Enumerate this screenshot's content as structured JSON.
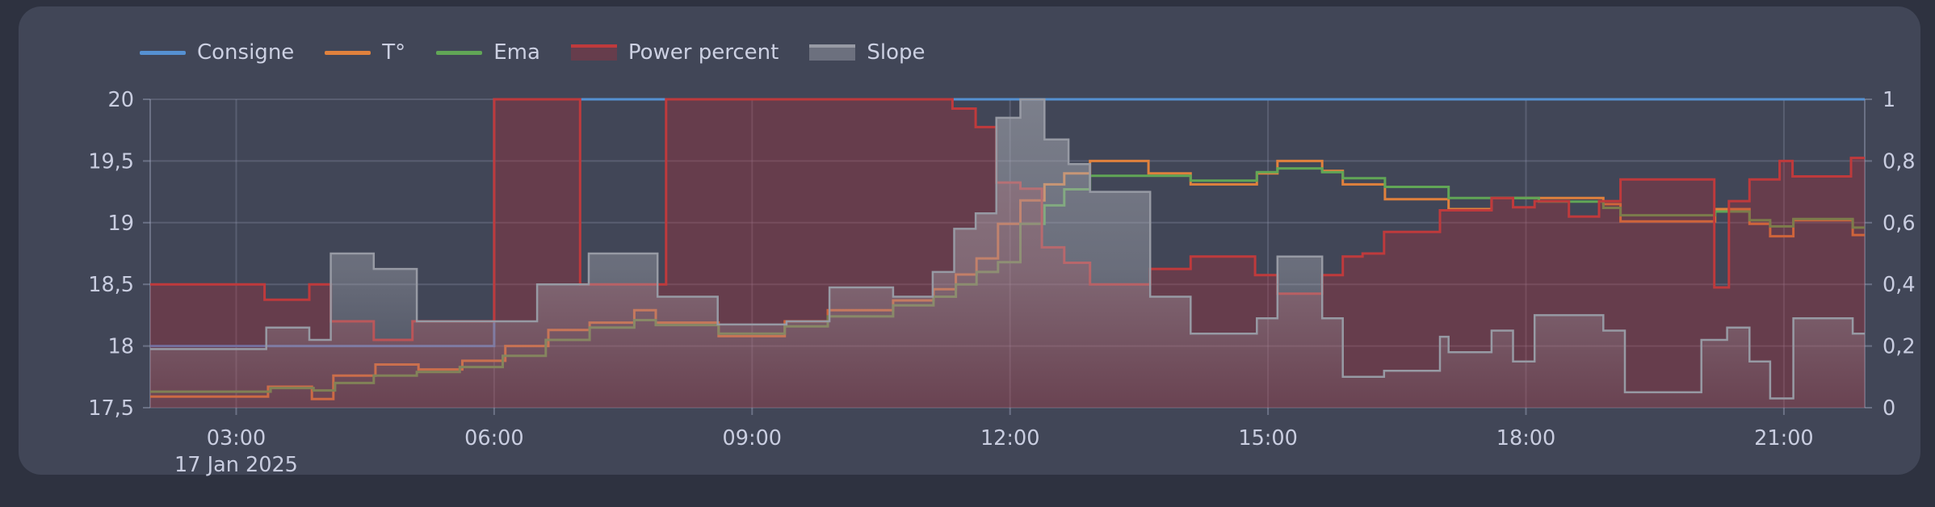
{
  "theme": {
    "page_bg": "#2e3240",
    "panel_bg": "#414657",
    "grid_color": "rgba(145,152,175,0.30)",
    "axis_line_color": "rgba(160,166,190,0.45)",
    "axis_label_color": "#c9cde0",
    "legend_text_color": "#ccd0e2"
  },
  "legend": {
    "items": [
      {
        "label": "Consigne",
        "swatch": "line"
      },
      {
        "label": "T°",
        "swatch": "line"
      },
      {
        "label": "Ema",
        "swatch": "line"
      },
      {
        "label": "Power percent",
        "swatch": "area"
      },
      {
        "label": "Slope",
        "swatch": "area"
      }
    ]
  },
  "chart_data": {
    "type": "line",
    "step": "after",
    "x_range_hours": [
      2.0,
      21.94
    ],
    "x_axis": {
      "ticks": [
        {
          "t": 3,
          "label": "03:00",
          "sublabel": "17 Jan 2025"
        },
        {
          "t": 6,
          "label": "06:00",
          "sublabel": ""
        },
        {
          "t": 9,
          "label": "09:00",
          "sublabel": ""
        },
        {
          "t": 12,
          "label": "12:00",
          "sublabel": ""
        },
        {
          "t": 15,
          "label": "15:00",
          "sublabel": ""
        },
        {
          "t": 18,
          "label": "18:00",
          "sublabel": ""
        },
        {
          "t": 21,
          "label": "21:00",
          "sublabel": ""
        }
      ]
    },
    "left_axis": {
      "range": [
        17.5,
        20
      ],
      "ticks": [
        {
          "v": 20,
          "label": "20"
        },
        {
          "v": 19.5,
          "label": "19,5"
        },
        {
          "v": 19,
          "label": "19"
        },
        {
          "v": 18.5,
          "label": "18,5"
        },
        {
          "v": 18,
          "label": "18"
        },
        {
          "v": 17.5,
          "label": "17,5"
        }
      ]
    },
    "right_axis": {
      "range": [
        0,
        1
      ],
      "ticks": [
        {
          "v": 1,
          "label": "1"
        },
        {
          "v": 0.8,
          "label": "0,8"
        },
        {
          "v": 0.6,
          "label": "0,6"
        },
        {
          "v": 0.4,
          "label": "0,4"
        },
        {
          "v": 0.2,
          "label": "0,2"
        },
        {
          "v": 0,
          "label": "0"
        }
      ]
    },
    "grid": true,
    "legend_position": "top-left",
    "series": [
      {
        "name": "Consigne",
        "axis": "left",
        "kind": "line",
        "color": "#5591d2",
        "width": 3,
        "data": [
          [
            2.0,
            18.0
          ],
          [
            6.0,
            20.0
          ]
        ]
      },
      {
        "name": "T°",
        "axis": "left",
        "kind": "line",
        "color": "#e0813d",
        "width": 3,
        "data": [
          [
            2.0,
            17.59
          ],
          [
            3.37,
            17.67
          ],
          [
            3.88,
            17.57
          ],
          [
            4.13,
            17.76
          ],
          [
            4.62,
            17.85
          ],
          [
            5.12,
            17.81
          ],
          [
            5.63,
            17.88
          ],
          [
            6.13,
            18.0
          ],
          [
            6.63,
            18.13
          ],
          [
            7.11,
            18.19
          ],
          [
            7.63,
            18.29
          ],
          [
            7.88,
            18.19
          ],
          [
            8.61,
            18.08
          ],
          [
            9.38,
            18.2
          ],
          [
            9.88,
            18.29
          ],
          [
            10.64,
            18.37
          ],
          [
            11.11,
            18.46
          ],
          [
            11.37,
            18.58
          ],
          [
            11.61,
            18.71
          ],
          [
            11.86,
            18.99
          ],
          [
            12.12,
            19.18
          ],
          [
            12.4,
            19.31
          ],
          [
            12.63,
            19.4
          ],
          [
            12.93,
            19.5
          ],
          [
            13.61,
            19.4
          ],
          [
            14.1,
            19.31
          ],
          [
            14.87,
            19.4
          ],
          [
            15.11,
            19.5
          ],
          [
            15.63,
            19.42
          ],
          [
            15.87,
            19.31
          ],
          [
            16.36,
            19.19
          ],
          [
            17.1,
            19.11
          ],
          [
            17.6,
            19.2
          ],
          [
            18.9,
            19.15
          ],
          [
            19.1,
            19.01
          ],
          [
            20.2,
            19.11
          ],
          [
            20.6,
            18.99
          ],
          [
            20.84,
            18.89
          ],
          [
            21.11,
            19.02
          ],
          [
            21.8,
            18.9
          ]
        ]
      },
      {
        "name": "Ema",
        "axis": "left",
        "kind": "line",
        "color": "#61a656",
        "width": 3,
        "data": [
          [
            2.0,
            17.63
          ],
          [
            3.4,
            17.66
          ],
          [
            3.9,
            17.64
          ],
          [
            4.15,
            17.7
          ],
          [
            4.6,
            17.76
          ],
          [
            5.1,
            17.79
          ],
          [
            5.6,
            17.83
          ],
          [
            6.1,
            17.92
          ],
          [
            6.6,
            18.05
          ],
          [
            7.11,
            18.15
          ],
          [
            7.63,
            18.21
          ],
          [
            7.88,
            18.17
          ],
          [
            8.61,
            18.1
          ],
          [
            9.38,
            18.16
          ],
          [
            9.88,
            18.24
          ],
          [
            10.64,
            18.33
          ],
          [
            11.11,
            18.4
          ],
          [
            11.37,
            18.5
          ],
          [
            11.61,
            18.6
          ],
          [
            11.86,
            18.68
          ],
          [
            12.12,
            18.99
          ],
          [
            12.4,
            19.14
          ],
          [
            12.63,
            19.27
          ],
          [
            12.93,
            19.38
          ],
          [
            14.1,
            19.34
          ],
          [
            14.87,
            19.41
          ],
          [
            15.11,
            19.44
          ],
          [
            15.63,
            19.41
          ],
          [
            15.87,
            19.36
          ],
          [
            16.36,
            19.29
          ],
          [
            17.1,
            19.2
          ],
          [
            18.15,
            19.17
          ],
          [
            18.9,
            19.12
          ],
          [
            19.1,
            19.06
          ],
          [
            20.2,
            19.09
          ],
          [
            20.6,
            19.02
          ],
          [
            20.84,
            18.97
          ],
          [
            21.11,
            19.03
          ],
          [
            21.8,
            18.96
          ]
        ]
      },
      {
        "name": "Power percent",
        "axis": "right",
        "kind": "area",
        "color": "#bf3a3c",
        "width": 3,
        "fill": "rgba(175,45,55,0.34)",
        "data": [
          [
            2.0,
            0.4
          ],
          [
            3.33,
            0.35
          ],
          [
            3.85,
            0.4
          ],
          [
            4.1,
            0.28
          ],
          [
            4.6,
            0.22
          ],
          [
            5.05,
            0.28
          ],
          [
            6.0,
            1.0
          ],
          [
            7.0,
            0.4
          ],
          [
            8.0,
            1.0
          ],
          [
            11.33,
            0.97
          ],
          [
            11.6,
            0.91
          ],
          [
            11.84,
            0.73
          ],
          [
            12.12,
            0.71
          ],
          [
            12.37,
            0.52
          ],
          [
            12.63,
            0.47
          ],
          [
            12.93,
            0.4
          ],
          [
            13.63,
            0.45
          ],
          [
            14.1,
            0.49
          ],
          [
            14.85,
            0.43
          ],
          [
            15.11,
            0.37
          ],
          [
            15.63,
            0.43
          ],
          [
            15.87,
            0.49
          ],
          [
            16.1,
            0.5
          ],
          [
            16.35,
            0.57
          ],
          [
            17.0,
            0.64
          ],
          [
            17.6,
            0.68
          ],
          [
            17.85,
            0.65
          ],
          [
            18.1,
            0.67
          ],
          [
            18.5,
            0.62
          ],
          [
            18.85,
            0.67
          ],
          [
            19.1,
            0.74
          ],
          [
            20.19,
            0.39
          ],
          [
            20.36,
            0.67
          ],
          [
            20.6,
            0.74
          ],
          [
            20.95,
            0.8
          ],
          [
            21.1,
            0.75
          ],
          [
            21.78,
            0.81
          ]
        ]
      },
      {
        "name": "Slope",
        "axis": "right",
        "kind": "area",
        "color": "#979aa4",
        "width": 2.5,
        "fill": "gradient",
        "data": [
          [
            2.0,
            0.19
          ],
          [
            3.35,
            0.26
          ],
          [
            3.85,
            0.22
          ],
          [
            4.1,
            0.5
          ],
          [
            4.6,
            0.45
          ],
          [
            5.1,
            0.28
          ],
          [
            6.5,
            0.4
          ],
          [
            7.1,
            0.5
          ],
          [
            7.9,
            0.36
          ],
          [
            8.6,
            0.27
          ],
          [
            9.4,
            0.28
          ],
          [
            9.9,
            0.39
          ],
          [
            10.64,
            0.36
          ],
          [
            11.1,
            0.44
          ],
          [
            11.35,
            0.58
          ],
          [
            11.6,
            0.63
          ],
          [
            11.84,
            0.94
          ],
          [
            12.12,
            1.0
          ],
          [
            12.4,
            0.87
          ],
          [
            12.68,
            0.79
          ],
          [
            12.93,
            0.7
          ],
          [
            13.63,
            0.36
          ],
          [
            14.1,
            0.24
          ],
          [
            14.87,
            0.29
          ],
          [
            15.11,
            0.49
          ],
          [
            15.63,
            0.29
          ],
          [
            15.87,
            0.1
          ],
          [
            16.35,
            0.12
          ],
          [
            17.0,
            0.23
          ],
          [
            17.1,
            0.18
          ],
          [
            17.6,
            0.25
          ],
          [
            17.85,
            0.15
          ],
          [
            18.1,
            0.3
          ],
          [
            18.9,
            0.25
          ],
          [
            19.15,
            0.05
          ],
          [
            20.04,
            0.22
          ],
          [
            20.34,
            0.26
          ],
          [
            20.6,
            0.15
          ],
          [
            20.84,
            0.03
          ],
          [
            21.11,
            0.29
          ],
          [
            21.8,
            0.24
          ]
        ]
      }
    ]
  }
}
